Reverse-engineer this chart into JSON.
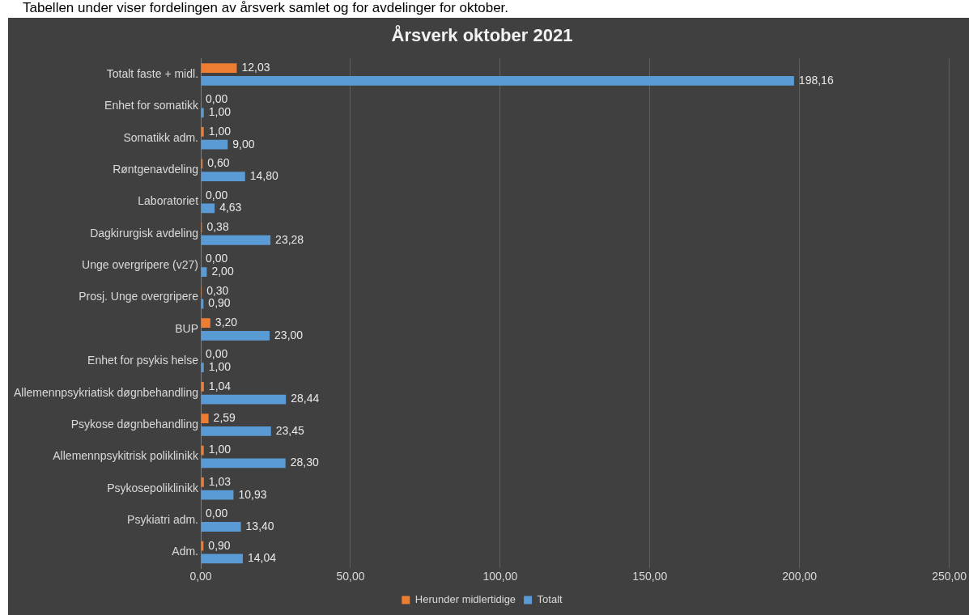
{
  "chart_data": {
    "type": "bar",
    "orientation": "horizontal",
    "title": "Årsverk oktober 2021",
    "subtitle": "Tabellen under viser fordelingen av årsverk samlet og for avdelinger for oktober.",
    "categories": [
      "Totalt faste + midl.",
      "Enhet for somatikk",
      "Somatikk adm.",
      "Røntgenavdeling",
      "Laboratoriet",
      "Dagkirurgisk avdeling",
      "Unge overgripere (v27)",
      "Prosj. Unge overgripere",
      "BUP",
      "Enhet for psykis helse",
      "Allemennpsykriatisk døgnbehandling",
      "Psykose døgnbehandling",
      "Allemennpsykitrisk poliklinikk",
      "Psykosepoliklinikk",
      "Psykiatri adm.",
      "Adm."
    ],
    "series": [
      {
        "name": "Herunder midlertidige",
        "color": "#ed7d31",
        "values": [
          12.03,
          0,
          1,
          0.6,
          0,
          0.38,
          0,
          0.3,
          3.2,
          0,
          1.04,
          2.59,
          1,
          1.03,
          0,
          0.9
        ],
        "value_labels": [
          "12,03",
          "0,00",
          "1,00",
          "0,60",
          "0,00",
          "0,38",
          "0,00",
          "0,30",
          "3,20",
          "0,00",
          "1,04",
          "2,59",
          "1,00",
          "1,03",
          "0,00",
          "0,90"
        ]
      },
      {
        "name": "Totalt",
        "color": "#5b9bd5",
        "values": [
          198.16,
          1,
          9,
          14.8,
          4.63,
          23.28,
          2,
          0.9,
          23,
          1,
          28.44,
          23.45,
          28.3,
          10.93,
          13.4,
          14.04
        ],
        "value_labels": [
          "198,16",
          "1,00",
          "9,00",
          "14,80",
          "4,63",
          "23,28",
          "2,00",
          "0,90",
          "23,00",
          "1,00",
          "28,44",
          "23,45",
          "28,30",
          "10,93",
          "13,40",
          "14,04"
        ]
      }
    ],
    "xlim": [
      0,
      250
    ],
    "xticks": [
      {
        "value": 0,
        "label": "0,00"
      },
      {
        "value": 50,
        "label": "50,00"
      },
      {
        "value": 100,
        "label": "100,00"
      },
      {
        "value": 150,
        "label": "150,00"
      },
      {
        "value": 200,
        "label": "200,00"
      },
      {
        "value": 250,
        "label": "250,00"
      }
    ],
    "grid": "x",
    "legend": "bottom"
  }
}
